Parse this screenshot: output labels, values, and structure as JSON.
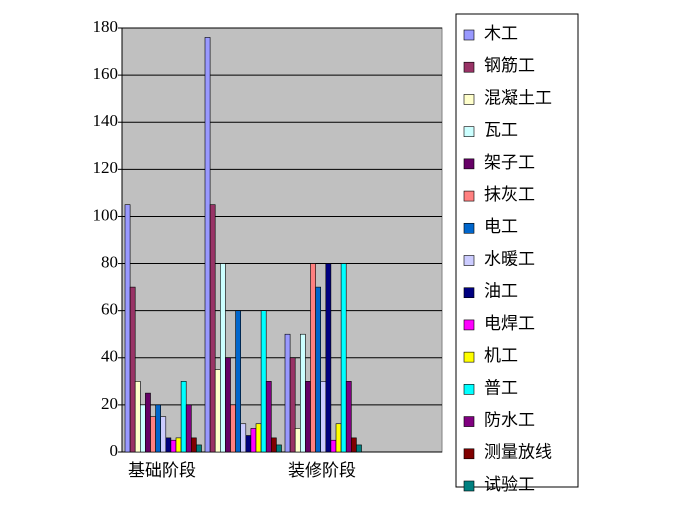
{
  "chart_data": {
    "type": "bar",
    "categories": [
      "基础阶段",
      null,
      "装修阶段",
      null
    ],
    "ylim": [
      0,
      180
    ],
    "yticks": [
      0,
      20,
      40,
      60,
      80,
      100,
      120,
      140,
      160,
      180
    ],
    "grid": true,
    "legend": "right",
    "series": [
      {
        "name": "木工",
        "color": "#9999ff",
        "values": [
          105,
          176,
          50,
          null
        ]
      },
      {
        "name": "钢筋工",
        "color": "#993366",
        "values": [
          70,
          105,
          40,
          null
        ]
      },
      {
        "name": "混凝土工",
        "color": "#ffffcc",
        "values": [
          30,
          35,
          10,
          null
        ]
      },
      {
        "name": "瓦工",
        "color": "#ccffff",
        "values": [
          20,
          80,
          50,
          null
        ]
      },
      {
        "name": "架子工",
        "color": "#660066",
        "values": [
          25,
          40,
          30,
          null
        ]
      },
      {
        "name": "抹灰工",
        "color": "#ff8080",
        "values": [
          15,
          20,
          80,
          null
        ]
      },
      {
        "name": "电工",
        "color": "#0066cc",
        "values": [
          20,
          60,
          70,
          null
        ]
      },
      {
        "name": "水暖工",
        "color": "#ccccff",
        "values": [
          15,
          12,
          30,
          null
        ]
      },
      {
        "name": "油工",
        "color": "#000080",
        "values": [
          6,
          7,
          80,
          null
        ]
      },
      {
        "name": "电焊工",
        "color": "#ff00ff",
        "values": [
          5,
          10,
          5,
          null
        ]
      },
      {
        "name": "机工",
        "color": "#ffff00",
        "values": [
          6,
          12,
          12,
          null
        ]
      },
      {
        "name": "普工",
        "color": "#00ffff",
        "values": [
          30,
          60,
          80,
          null
        ]
      },
      {
        "name": "防水工",
        "color": "#800080",
        "values": [
          20,
          30,
          30,
          null
        ]
      },
      {
        "name": "测量放线",
        "color": "#800000",
        "values": [
          6,
          6,
          6,
          null
        ]
      },
      {
        "name": "试验工",
        "color": "#008080",
        "values": [
          3,
          3,
          3,
          null
        ]
      }
    ]
  }
}
